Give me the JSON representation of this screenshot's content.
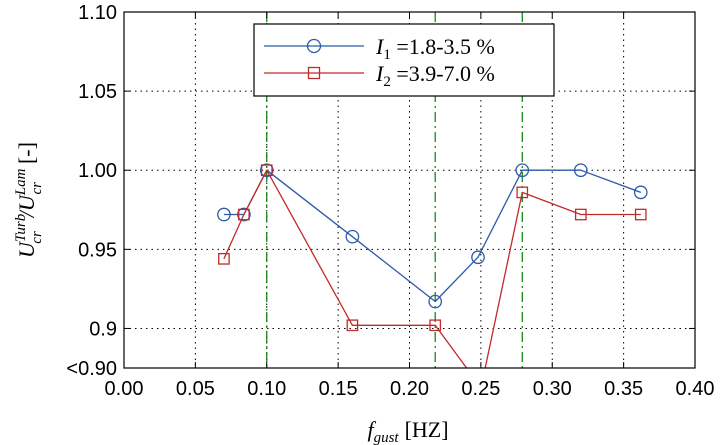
{
  "chart_data": {
    "type": "line",
    "title": "",
    "xlabel_parts": {
      "main": "f",
      "sub": "gust",
      "unit": "[HZ]"
    },
    "ylabel_parts": {
      "u1": "U",
      "sub1": "cr",
      "sup1": "Turb",
      "slash": "/",
      "u2": "U",
      "sub2": "cr",
      "sup2": "Lam",
      "unit": "[-]"
    },
    "xlim": [
      0.0,
      0.4
    ],
    "ylim": [
      0.875,
      1.1
    ],
    "x_ticks": [
      0.0,
      0.05,
      0.1,
      0.15,
      0.2,
      0.25,
      0.3,
      0.35,
      0.4
    ],
    "x_tick_labels": [
      "0.00",
      "0.05",
      "0.10",
      "0.15",
      "0.20",
      "0.25",
      "0.30",
      "0.35",
      "0.40"
    ],
    "y_ticks": [
      0.875,
      0.9,
      0.95,
      1.0,
      1.05,
      1.1
    ],
    "y_tick_labels": [
      "<0.90",
      "0.9",
      "0.95",
      "1.00",
      "1.05",
      "1.10"
    ],
    "grid": true,
    "legend_position": "top-center",
    "vertical_lines": [
      0.1,
      0.218,
      0.279
    ],
    "vertical_line_color": "#008000",
    "series": [
      {
        "name": "I1 =1.8-3.5 %",
        "name_parts": {
          "sym": "I",
          "sub": "1",
          "text": " =1.8-3.5 %"
        },
        "color": "#2b5aa8",
        "marker": "circle",
        "segments": [
          {
            "x": [
              0.07,
              0.084
            ],
            "y": [
              0.972,
              0.972
            ]
          },
          {
            "x": [
              0.084,
              0.1,
              0.16,
              0.218,
              0.248,
              0.279,
              0.32,
              0.362
            ],
            "y": [
              0.972,
              1.0,
              0.958,
              0.917,
              0.945,
              1.0,
              1.0,
              0.986
            ]
          }
        ]
      },
      {
        "name": "I2 =3.9-7.0 %",
        "name_parts": {
          "sym": "I",
          "sub": "2",
          "text": " =3.9-7.0 %"
        },
        "color": "#c22a2a",
        "marker": "square",
        "segments": [
          {
            "x": [
              0.07,
              0.084,
              0.1,
              0.16,
              0.218,
              0.24
            ],
            "y": [
              0.944,
              0.972,
              1.0,
              0.902,
              0.902,
              0.875
            ]
          },
          {
            "x": [
              0.253,
              0.279,
              0.32,
              0.362
            ],
            "y": [
              0.875,
              0.986,
              0.972,
              0.972
            ]
          }
        ],
        "marker_points": {
          "x": [
            0.07,
            0.084,
            0.1,
            0.16,
            0.218,
            0.279,
            0.32,
            0.362
          ],
          "y": [
            0.944,
            0.972,
            1.0,
            0.902,
            0.902,
            0.986,
            0.972,
            0.972
          ]
        }
      }
    ]
  }
}
